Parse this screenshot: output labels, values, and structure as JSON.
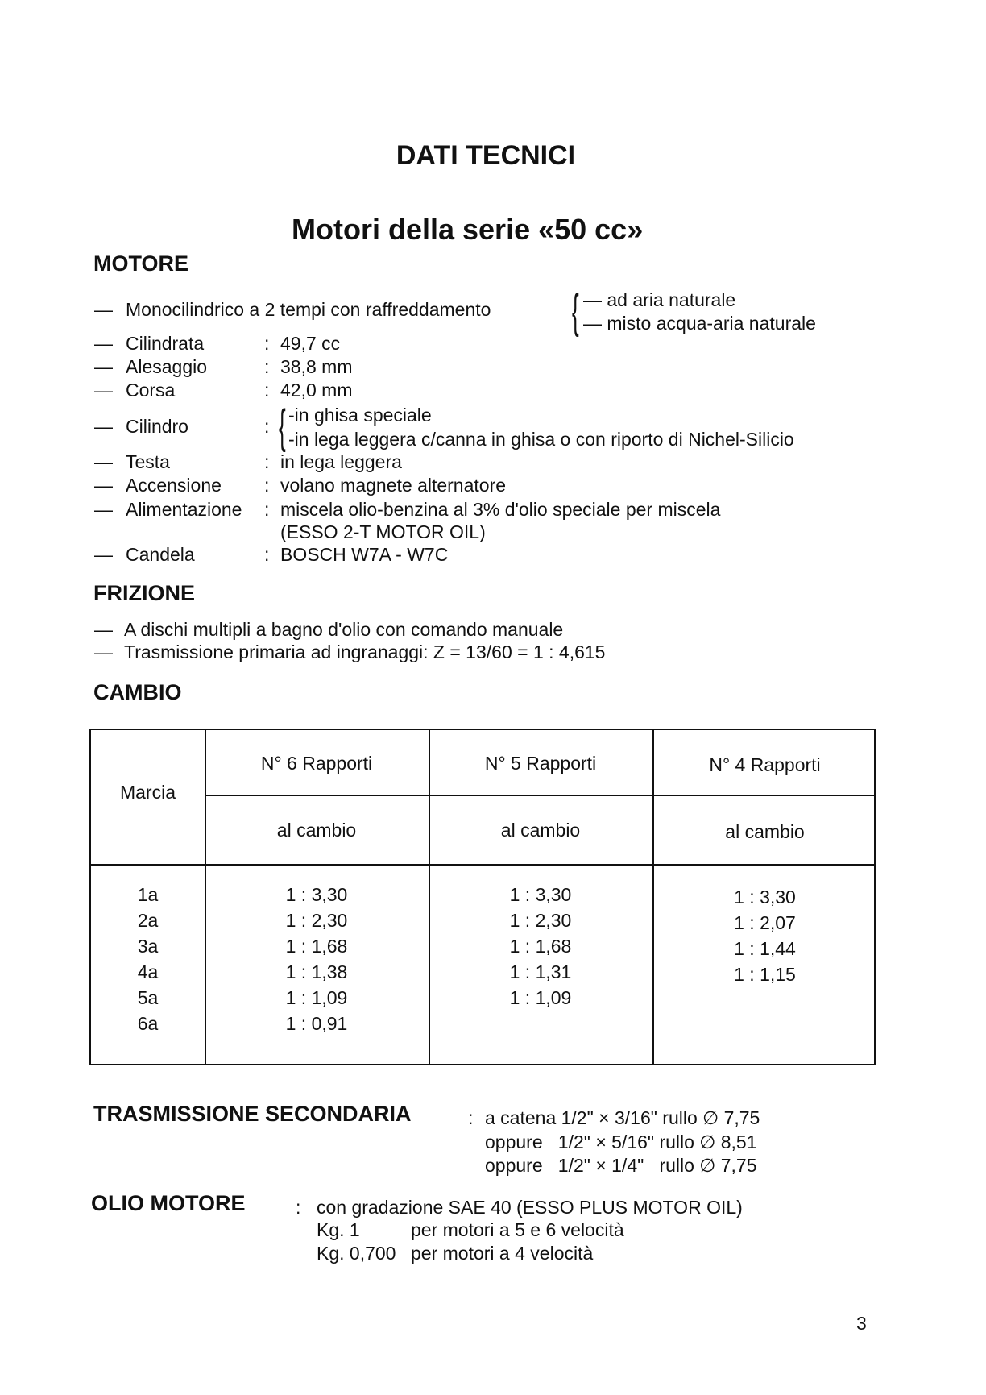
{
  "title": "DATI TECNICI",
  "subtitle": "Motori della serie «50 cc»",
  "motore": {
    "heading": "MOTORE",
    "cooling": {
      "label": "Monocilindrico a 2 tempi con raffreddamento",
      "options": [
        "— ad aria naturale",
        "— misto acqua-aria naturale"
      ]
    },
    "specs": [
      {
        "label": "Cilindrata",
        "value": "49,7 cc"
      },
      {
        "label": "Alesaggio",
        "value": "38,8 mm"
      },
      {
        "label": "Corsa",
        "value": "42,0 mm"
      },
      {
        "label": "Cilindro",
        "options": [
          "-in ghisa speciale",
          "-in lega leggera c/canna in ghisa o con riporto di Nichel-Silicio"
        ]
      },
      {
        "label": "Testa",
        "value": "in lega leggera"
      },
      {
        "label": "Accensione",
        "value": "volano magnete alternatore"
      },
      {
        "label": "Alimentazione",
        "value": "miscela olio-benzina al 3% d'olio speciale per miscela",
        "value2": "(ESSO 2-T MOTOR OIL)"
      },
      {
        "label": "Candela",
        "value": "BOSCH W7A - W7C"
      }
    ]
  },
  "frizione": {
    "heading": "FRIZIONE",
    "lines": [
      "A dischi multipli a bagno d'olio con comando manuale",
      "Trasmissione primaria ad ingranaggi: Z = 13/60 = 1 : 4,615"
    ]
  },
  "cambio": {
    "heading": "CAMBIO",
    "table": {
      "marcia_header": "Marcia",
      "columns": [
        {
          "header": "N° 6 Rapporti",
          "sub": "al cambio",
          "values": [
            "1 : 3,30",
            "1 : 2,30",
            "1 : 1,68",
            "1 : 1,38",
            "1 : 1,09",
            "1 : 0,91"
          ]
        },
        {
          "header": "N° 5 Rapporti",
          "sub": "al cambio",
          "values": [
            "1 : 3,30",
            "1 : 2,30",
            "1 : 1,68",
            "1 : 1,31",
            "1 : 1,09"
          ]
        },
        {
          "header": "N° 4 Rapporti",
          "sub": "al cambio",
          "values": [
            "1 : 3,30",
            "1 : 2,07",
            "1 : 1,44",
            "1 : 1,15"
          ]
        }
      ],
      "gears": [
        "1a",
        "2a",
        "3a",
        "4a",
        "5a",
        "6a"
      ]
    }
  },
  "trasmissione": {
    "heading": "TRASMISSIONE SECONDARIA",
    "lines": [
      "a catena 1/2\" × 3/16\" rullo ∅ 7,75",
      "oppure   1/2\" × 5/16\" rullo ∅ 8,51",
      "oppure   1/2\" × 1/4\"   rullo ∅ 7,75"
    ]
  },
  "olio": {
    "heading": "OLIO MOTORE",
    "lines": [
      "con gradazione SAE 40 (ESSO PLUS MOTOR OIL)"
    ],
    "quantities": [
      {
        "qty": "Kg. 1",
        "desc": "per motori a 5 e 6 velocità"
      },
      {
        "qty": "Kg. 0,700",
        "desc": "per motori a 4 velocità"
      }
    ]
  },
  "page_number": "3"
}
